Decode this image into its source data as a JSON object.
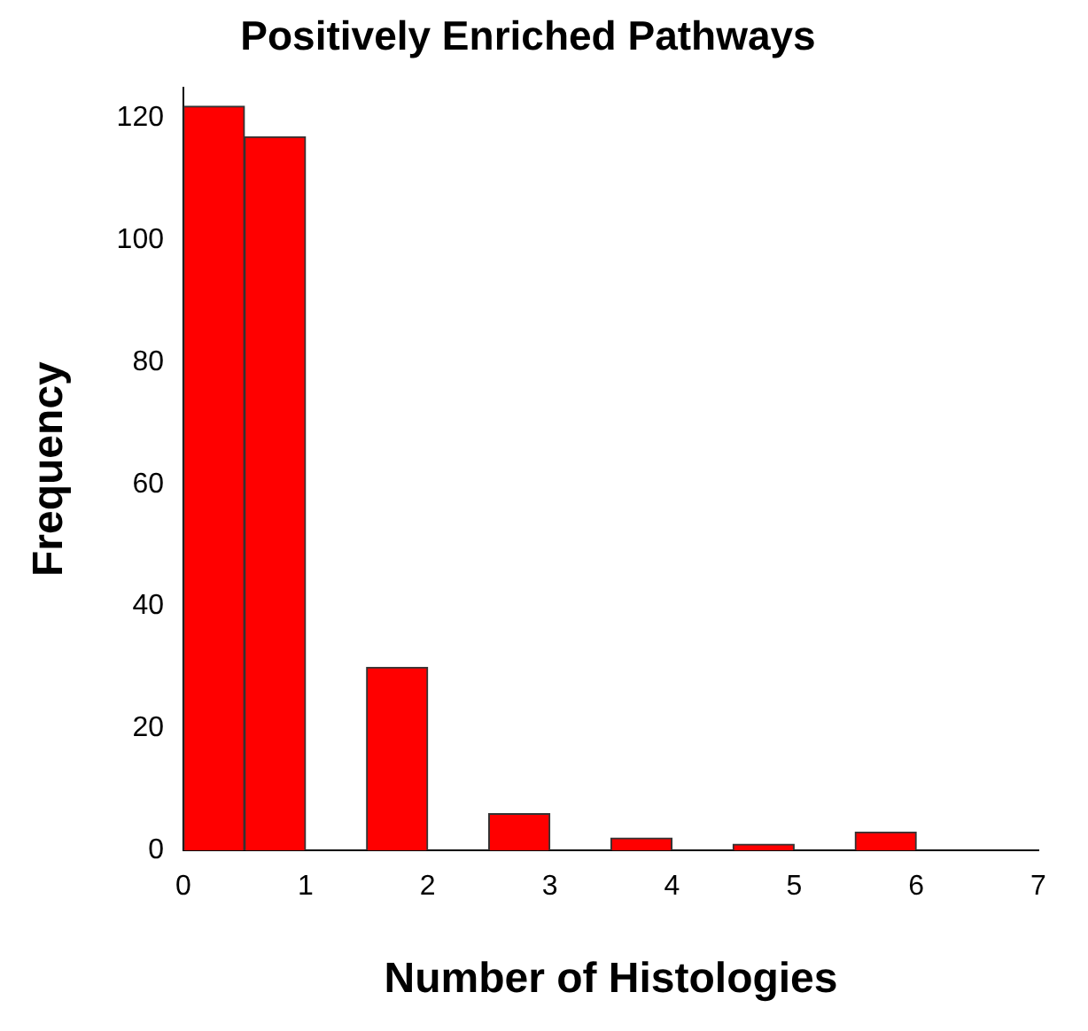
{
  "chart_data": {
    "type": "histogram",
    "title": "Positively Enriched Pathways",
    "xlabel": "Number of Histologies",
    "ylabel": "Frequency",
    "bins": [
      0,
      0.5,
      1,
      1.5,
      2,
      2.5,
      3,
      3.5,
      4,
      4.5,
      5,
      5.5,
      6
    ],
    "values": [
      122,
      117,
      0,
      30,
      0,
      6,
      0,
      2,
      0,
      1,
      0,
      3
    ],
    "color": "#ff0000",
    "xlim": [
      0,
      7
    ],
    "xticks": [
      0,
      1,
      2,
      3,
      4,
      5,
      6,
      7
    ],
    "ylim": [
      0,
      125
    ],
    "yticks": [
      0,
      20,
      40,
      60,
      80,
      100,
      120
    ],
    "grid": false,
    "legend": false
  }
}
